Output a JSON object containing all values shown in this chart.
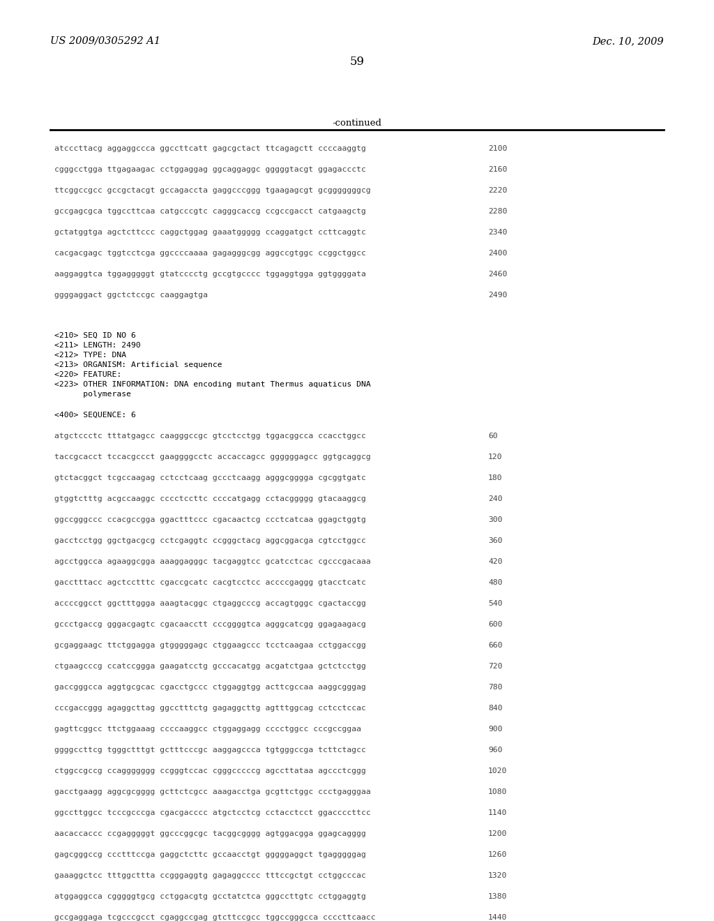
{
  "header_left": "US 2009/0305292 A1",
  "header_right": "Dec. 10, 2009",
  "page_number": "59",
  "continued_label": "-continued",
  "background_color": "#ffffff",
  "text_color": "#000000",
  "seq_color": "#444444",
  "continued_section": [
    {
      "seq": "atcccttacg aggaggccca ggccttcatt gagcgctact ttcagagctt ccccaaggtg",
      "num": "2100"
    },
    {
      "seq": "cgggcctgga ttgagaagac cctggaggag ggcaggaggc gggggtacgt ggagaccctc",
      "num": "2160"
    },
    {
      "seq": "ttcggccgcc gccgctacgt gccagaccta gaggcccggg tgaagagcgt gcgggggggcg",
      "num": "2220"
    },
    {
      "seq": "gccgagcgca tggccttcaa catgcccgtc cagggcaccg ccgccgacct catgaagctg",
      "num": "2280"
    },
    {
      "seq": "gctatggtga agctcttccc caggctggag gaaatggggg ccaggatgct ccttcaggtc",
      "num": "2340"
    },
    {
      "seq": "cacgacgagc tggtcctcga ggccccaaaa gagagggcgg aggccgtggc ccggctggcc",
      "num": "2400"
    },
    {
      "seq": "aaggaggtca tggagggggt gtatcccctg gccgtgcccc tggaggtgga ggtggggata",
      "num": "2460"
    },
    {
      "seq": "ggggaggact ggctctccgc caaggagtga",
      "num": "2490"
    }
  ],
  "metadata_lines": [
    "<210> SEQ ID NO 6",
    "<211> LENGTH: 2490",
    "<212> TYPE: DNA",
    "<213> ORGANISM: Artificial sequence",
    "<220> FEATURE:",
    "<223> OTHER INFORMATION: DNA encoding mutant Thermus aquaticus DNA",
    "      polymerase"
  ],
  "sequence_header": "<400> SEQUENCE: 6",
  "sequence_lines": [
    {
      "seq": "atgctccctc tttatgagcc caagggccgc gtcctcctgg tggacggcca ccacctggcc",
      "num": "60"
    },
    {
      "seq": "taccgcacct tccacgccct gaaggggcctc accaccagcc ggggggagcc ggtgcaggcg",
      "num": "120"
    },
    {
      "seq": "gtctacggct tcgccaagag cctcctcaag gccctcaagg agggcgggga cgcggtgatc",
      "num": "180"
    },
    {
      "seq": "gtggtctttg acgccaaggc cccctccttc ccccatgagg cctacggggg gtacaaggcg",
      "num": "240"
    },
    {
      "seq": "ggccgggccc ccacgccgga ggactttccc cgacaactcg ccctcatcaa ggagctggtg",
      "num": "300"
    },
    {
      "seq": "gacctcctgg ggctgacgcg cctcgaggtc ccgggctacg aggcggacga cgtcctggcc",
      "num": "360"
    },
    {
      "seq": "agcctggcca agaaggcgga aaaggagggc tacgaggtcc gcatcctcac cgcccgacaaa",
      "num": "420"
    },
    {
      "seq": "gacctttacc agctcctttc cgaccgcatc cacgtcctcc accccgaggg gtacctcatc",
      "num": "480"
    },
    {
      "seq": "accccggcct ggctttggga aaagtacggc ctgaggcccg accagtgggc cgactaccgg",
      "num": "540"
    },
    {
      "seq": "gccctgaccg gggacgagtc cgacaacctt cccggggtca agggcatcgg ggagaagacg",
      "num": "600"
    },
    {
      "seq": "gcgaggaagc ttctggagga gtgggggagc ctggaagccc tcctcaagaa cctggaccgg",
      "num": "660"
    },
    {
      "seq": "ctgaagcccg ccatccggga gaagatcctg gcccacatgg acgatctgaa gctctcctgg",
      "num": "720"
    },
    {
      "seq": "gaccgggcca aggtgcgcac cgacctgccc ctggaggtgg acttcgccaa aaggcgggag",
      "num": "780"
    },
    {
      "seq": "cccgaccggg agaggcttag ggcctttctg gagaggcttg agtttggcag cctcctccac",
      "num": "840"
    },
    {
      "seq": "gagttcggcc ttctggaaag ccccaaggcc ctggaggagg cccctggcc cccgccggaa",
      "num": "900"
    },
    {
      "seq": "ggggccttcg tgggctttgt gctttcccgc aaggagccca tgtgggccga tcttctagcc",
      "num": "960"
    },
    {
      "seq": "ctggccgccg ccaggggggg ccgggtccac cgggcccccg agccttataa agccctcggg",
      "num": "1020"
    },
    {
      "seq": "gacctgaagg aggcgcgggg gcttctcgcc aaagacctga gcgttctggc ccctgagggaa",
      "num": "1080"
    },
    {
      "seq": "ggccttggcc tcccgcccga cgacgacccc atgctcctcg cctacctcct ggaccccttcc",
      "num": "1140"
    },
    {
      "seq": "aacaccaccc ccgagggggt ggcccggcgc tacggcgggg agtggacgga ggagcagggg",
      "num": "1200"
    },
    {
      "seq": "gagcgggccg ccctttccga gaggctcttc gccaacctgt gggggaggct tgagggggag",
      "num": "1260"
    },
    {
      "seq": "gaaaggctcc tttggcttta ccgggaggtg gagaggcccc tttccgctgt cctggcccac",
      "num": "1320"
    },
    {
      "seq": "atggaggcca cgggggtgcg cctggacgtg gcctatctca gggccttgtc cctggaggtg",
      "num": "1380"
    },
    {
      "seq": "gccgaggaga tcgcccgcct cgaggccgag gtcttccgcc tggccgggcca ccccttcaacc",
      "num": "1440"
    }
  ]
}
